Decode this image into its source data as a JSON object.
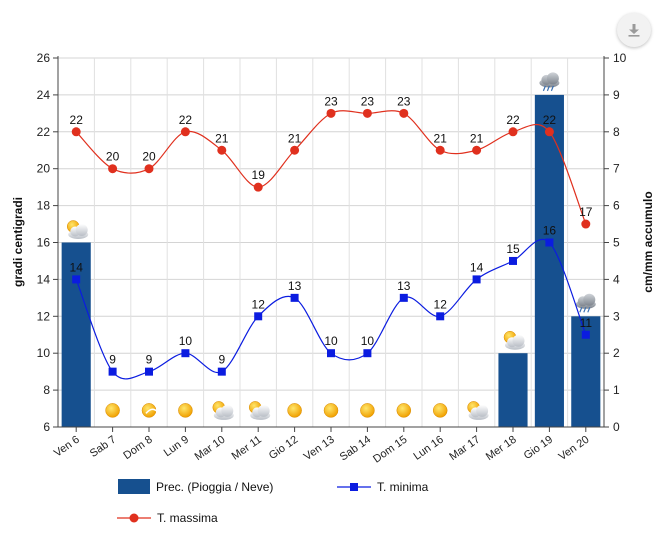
{
  "chart_data": {
    "type": "bar+line",
    "categories": [
      "Ven 6",
      "Sab 7",
      "Dom 8",
      "Lun 9",
      "Mar 10",
      "Mer 11",
      "Gio 12",
      "Ven 13",
      "Sab 14",
      "Dom 15",
      "Lun 16",
      "Mar 17",
      "Mer 18",
      "Gio 19",
      "Ven 20"
    ],
    "series": [
      {
        "name": "Prec. (Pioggia / Neve)",
        "type": "bar",
        "axis": "right",
        "color": "#16508f",
        "values": [
          5,
          0,
          0,
          0,
          0,
          0,
          0,
          0,
          0,
          0,
          0,
          0,
          2,
          9,
          3
        ]
      },
      {
        "name": "T. minima",
        "type": "line",
        "axis": "left",
        "color": "#0b1ce0",
        "marker": "square",
        "values": [
          14,
          9,
          9,
          10,
          9,
          12,
          13,
          10,
          10,
          13,
          12,
          14,
          15,
          16,
          11
        ]
      },
      {
        "name": "T. massima",
        "type": "line",
        "axis": "left",
        "color": "#e0301e",
        "marker": "circle",
        "values": [
          22,
          20,
          20,
          22,
          21,
          19,
          21,
          23,
          23,
          23,
          21,
          21,
          22,
          22,
          17
        ]
      }
    ],
    "weather_icons": [
      "sun-cloud",
      "sun",
      "sun-haze",
      "sun",
      "sun-cloud",
      "sun-cloud",
      "sun",
      "sun",
      "sun",
      "sun",
      "sun",
      "sun-cloud",
      "sun-cloud",
      "cloud-rain",
      "cloud-rain"
    ],
    "y_left": {
      "label": "gradi centigradi",
      "min": 6,
      "max": 26,
      "ticks": [
        6,
        8,
        10,
        12,
        14,
        16,
        18,
        20,
        22,
        24,
        26
      ]
    },
    "y_right": {
      "label": "cm/mm accumulo",
      "min": 0,
      "max": 10,
      "ticks": [
        0,
        1,
        2,
        3,
        4,
        5,
        6,
        7,
        8,
        9,
        10
      ]
    },
    "legend": [
      {
        "label": "Prec. (Pioggia / Neve)",
        "symbol": "bar",
        "color": "#16508f"
      },
      {
        "label": "T. minima",
        "symbol": "line-square",
        "color": "#0b1ce0"
      },
      {
        "label": "T. massima",
        "symbol": "line-circle",
        "color": "#e0301e"
      }
    ],
    "legend_position": "bottom",
    "grid": true
  },
  "ui": {
    "download_icon": "download-icon"
  }
}
